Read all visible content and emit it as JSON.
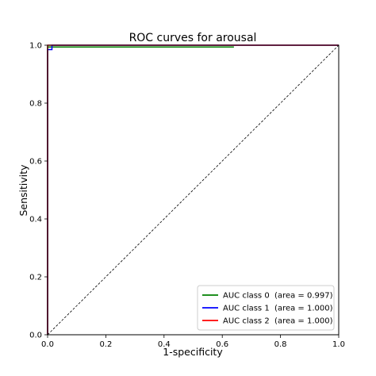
{
  "chart_data": {
    "type": "line",
    "title": "ROC curves for arousal",
    "xlabel": "1-specificity",
    "ylabel": "Sensitivity",
    "xlim": [
      0.0,
      1.0
    ],
    "ylim": [
      0.0,
      1.0
    ],
    "xticks": [
      "0.0",
      "0.2",
      "0.4",
      "0.6",
      "0.8",
      "1.0"
    ],
    "yticks": [
      "0.0",
      "0.2",
      "0.4",
      "0.6",
      "0.8",
      "1.0"
    ],
    "grid": false,
    "legend_position": "lower-right",
    "series": [
      {
        "name": "AUC class 0  (area = 0.997)",
        "color": "#008000",
        "x": [
          0.0,
          0.0,
          0.0,
          0.64
        ],
        "y": [
          0.0,
          0.994,
          0.994,
          0.994
        ]
      },
      {
        "name": "AUC class 1  (area = 1.000)",
        "color": "#0000ff",
        "x": [
          0.0,
          0.0,
          0.0,
          0.015,
          0.015,
          1.0
        ],
        "y": [
          0.0,
          0.985,
          0.985,
          0.985,
          1.0,
          1.0
        ]
      },
      {
        "name": "AUC class 2  (area = 1.000)",
        "color": "#ff0000",
        "x": [
          0.0,
          0.0,
          0.0,
          1.0
        ],
        "y": [
          0.0,
          1.0,
          1.0,
          1.0
        ]
      },
      {
        "name": "",
        "color": "#000000",
        "dashed": true,
        "x": [
          0.0,
          1.0
        ],
        "y": [
          0.0,
          1.0
        ]
      }
    ]
  }
}
